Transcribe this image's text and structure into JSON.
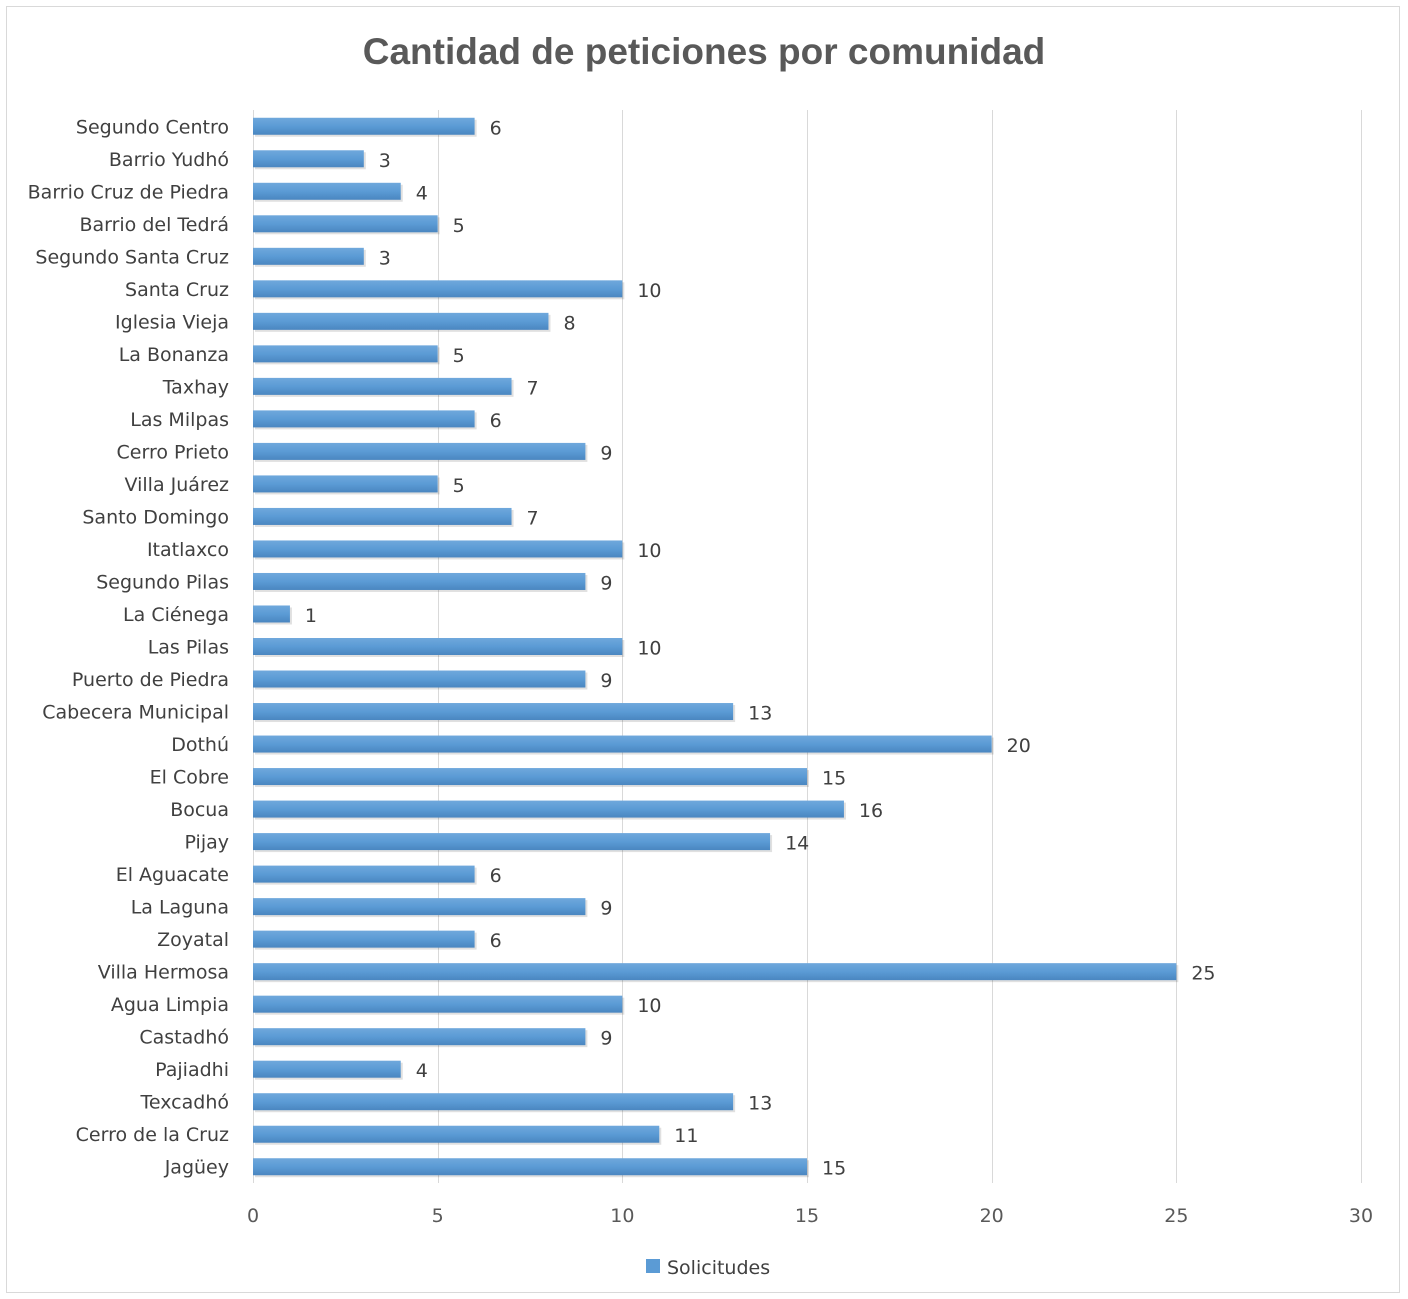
{
  "chart_data": {
    "type": "bar",
    "orientation": "horizontal",
    "title": "Cantidad de peticiones por comunidad",
    "xlabel": "",
    "ylabel": "",
    "xlim": [
      0,
      30
    ],
    "x_ticks": [
      0,
      5,
      10,
      15,
      20,
      25,
      30
    ],
    "grid": true,
    "legend_position": "bottom",
    "bar_color": "#5B9BD5",
    "categories": [
      "Segundo Centro",
      "Barrio Yudhó",
      "Barrio Cruz de Piedra",
      "Barrio del Tedrá",
      "Segundo Santa Cruz",
      "Santa Cruz",
      "Iglesia Vieja",
      "La Bonanza",
      "Taxhay",
      "Las Milpas",
      "Cerro Prieto",
      "Villa Juárez",
      "Santo Domingo",
      "Itatlaxco",
      "Segundo Pilas",
      "La Ciénega",
      "Las Pilas",
      "Puerto de Piedra",
      "Cabecera Municipal",
      "Dothú",
      "El Cobre",
      "Bocua",
      "Pijay",
      "El Aguacate",
      "La Laguna",
      "Zoyatal",
      "Villa Hermosa",
      "Agua Limpia",
      "Castadhó",
      "Pajiadhi",
      "Texcadhó",
      "Cerro de la Cruz",
      "Jagüey"
    ],
    "series": [
      {
        "name": "Solicitudes",
        "values": [
          6,
          3,
          4,
          5,
          3,
          10,
          8,
          5,
          7,
          6,
          9,
          5,
          7,
          10,
          9,
          1,
          10,
          9,
          13,
          20,
          15,
          16,
          14,
          6,
          9,
          6,
          25,
          10,
          9,
          4,
          13,
          11,
          15
        ]
      }
    ]
  }
}
